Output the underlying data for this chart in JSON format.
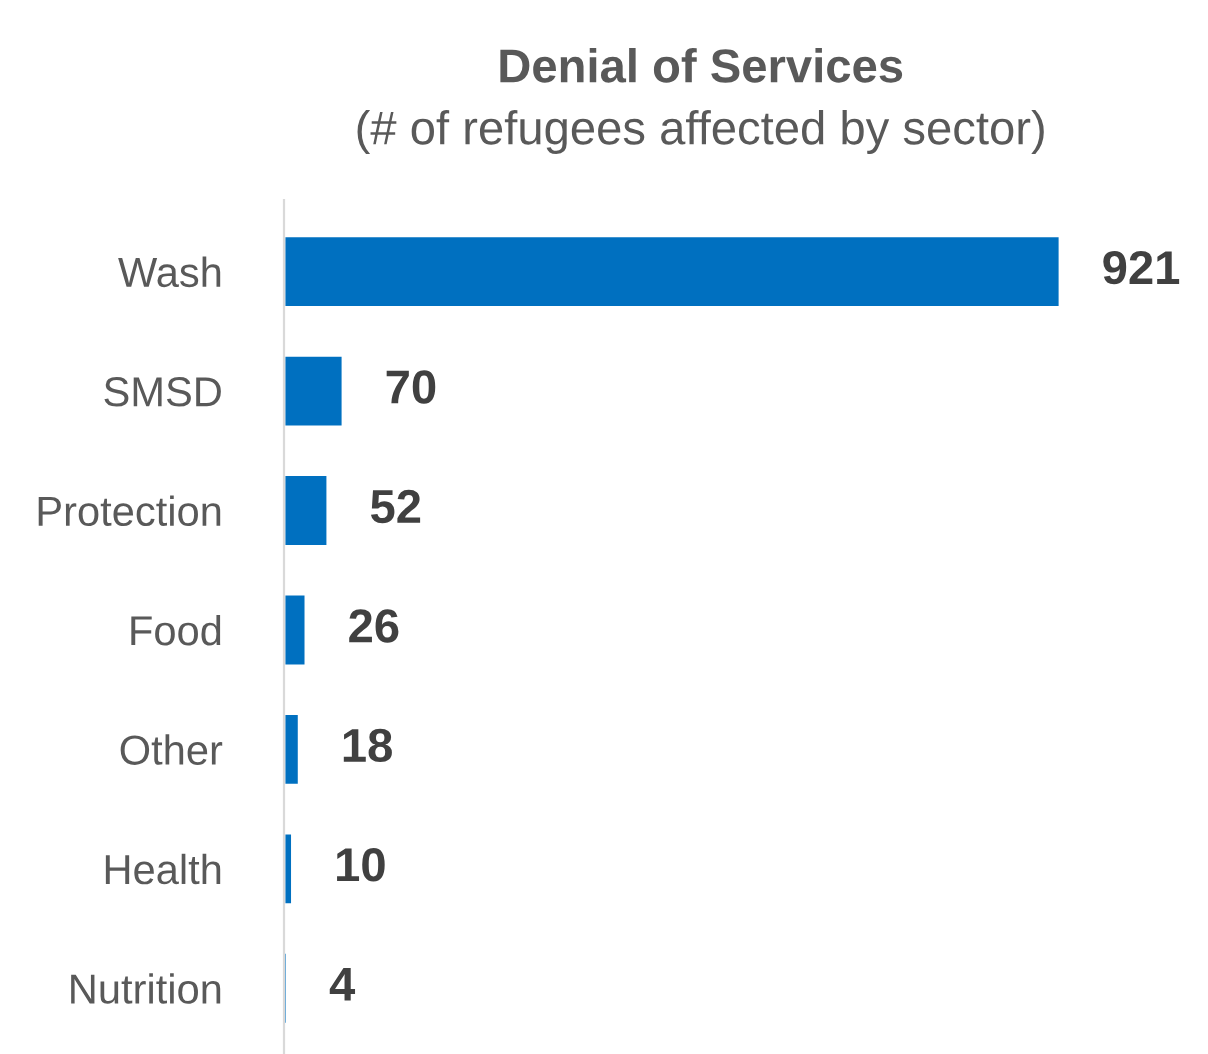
{
  "chart_data": {
    "type": "bar",
    "orientation": "horizontal",
    "title": "Denial of Services",
    "subtitle": "(# of refugees affected by sector)",
    "categories": [
      "Wash",
      "SMSD",
      "Protection",
      "Food",
      "Other",
      "Health",
      "Nutrition"
    ],
    "values": [
      921,
      70,
      52,
      26,
      18,
      10,
      4
    ],
    "color": "#0070c0",
    "data_labels": true,
    "tick_labels": "y",
    "grid": false,
    "legend": false
  }
}
